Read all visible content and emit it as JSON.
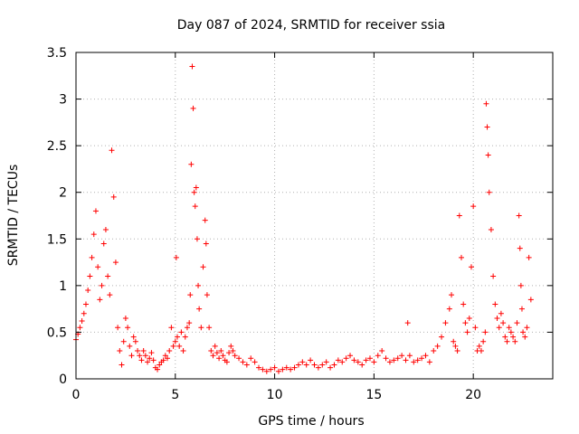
{
  "chart_data": {
    "type": "scatter",
    "title": "Day 087 of 2024, SRMTID for receiver ssia",
    "xlabel": "GPS time / hours",
    "ylabel": "SRMTID / TECUs",
    "xlim": [
      0,
      24
    ],
    "ylim": [
      0,
      3.5
    ],
    "xticks": [
      0,
      5,
      10,
      15,
      20
    ],
    "xtick_labels": [
      "0",
      "5",
      "10",
      "15",
      "20"
    ],
    "yticks": [
      0,
      0.5,
      1,
      1.5,
      2,
      2.5,
      3,
      3.5
    ],
    "ytick_labels": [
      "0",
      "0.5",
      "1",
      "1.5",
      "2",
      "2.5",
      "3",
      "3.5"
    ],
    "grid": true,
    "marker": "+",
    "marker_color": "#ff0000",
    "series": [
      {
        "name": "SRMTID",
        "x": [
          0.0,
          0.1,
          0.2,
          0.3,
          0.4,
          0.5,
          0.6,
          0.7,
          0.8,
          0.9,
          1.0,
          1.1,
          1.2,
          1.3,
          1.4,
          1.5,
          1.6,
          1.7,
          1.8,
          1.9,
          2.0,
          2.1,
          2.2,
          2.3,
          2.4,
          2.5,
          2.6,
          2.7,
          2.8,
          2.9,
          3.0,
          3.1,
          3.2,
          3.3,
          3.4,
          3.5,
          3.6,
          3.7,
          3.8,
          3.9,
          4.0,
          4.1,
          4.2,
          4.3,
          4.4,
          4.5,
          4.6,
          4.7,
          4.8,
          4.9,
          5.0,
          5.05,
          5.1,
          5.2,
          5.3,
          5.4,
          5.5,
          5.6,
          5.7,
          5.75,
          5.8,
          5.85,
          5.9,
          5.95,
          6.0,
          6.05,
          6.1,
          6.15,
          6.2,
          6.3,
          6.4,
          6.5,
          6.55,
          6.6,
          6.7,
          6.8,
          6.9,
          7.0,
          7.1,
          7.2,
          7.3,
          7.4,
          7.5,
          7.6,
          7.7,
          7.8,
          7.9,
          8.0,
          8.2,
          8.4,
          8.6,
          8.8,
          9.0,
          9.2,
          9.4,
          9.6,
          9.8,
          10.0,
          10.2,
          10.4,
          10.6,
          10.8,
          11.0,
          11.2,
          11.4,
          11.6,
          11.8,
          12.0,
          12.2,
          12.4,
          12.6,
          12.8,
          13.0,
          13.2,
          13.4,
          13.6,
          13.8,
          14.0,
          14.2,
          14.4,
          14.6,
          14.8,
          15.0,
          15.2,
          15.4,
          15.6,
          15.8,
          16.0,
          16.2,
          16.4,
          16.6,
          16.7,
          16.8,
          17.0,
          17.2,
          17.4,
          17.6,
          17.8,
          18.0,
          18.2,
          18.4,
          18.6,
          18.8,
          18.9,
          19.0,
          19.1,
          19.2,
          19.3,
          19.4,
          19.5,
          19.6,
          19.7,
          19.8,
          19.9,
          20.0,
          20.1,
          20.2,
          20.3,
          20.4,
          20.5,
          20.6,
          20.65,
          20.7,
          20.75,
          20.8,
          20.9,
          21.0,
          21.1,
          21.2,
          21.3,
          21.4,
          21.5,
          21.6,
          21.7,
          21.8,
          21.9,
          22.0,
          22.1,
          22.2,
          22.3,
          22.35,
          22.4,
          22.45,
          22.5,
          22.6,
          22.7,
          22.8,
          22.9
        ],
        "y": [
          0.42,
          0.48,
          0.55,
          0.62,
          0.7,
          0.8,
          0.95,
          1.1,
          1.3,
          1.55,
          1.8,
          1.2,
          0.85,
          1.0,
          1.45,
          1.6,
          1.1,
          0.9,
          2.45,
          1.95,
          1.25,
          0.55,
          0.3,
          0.15,
          0.4,
          0.65,
          0.55,
          0.35,
          0.25,
          0.45,
          0.4,
          0.3,
          0.25,
          0.2,
          0.3,
          0.25,
          0.18,
          0.22,
          0.28,
          0.2,
          0.12,
          0.1,
          0.15,
          0.18,
          0.2,
          0.25,
          0.22,
          0.3,
          0.55,
          0.35,
          0.4,
          1.3,
          0.45,
          0.35,
          0.5,
          0.3,
          0.45,
          0.55,
          0.6,
          0.9,
          2.3,
          3.35,
          2.9,
          2.0,
          1.85,
          2.05,
          1.5,
          1.0,
          0.75,
          0.55,
          1.2,
          1.7,
          1.45,
          0.9,
          0.55,
          0.3,
          0.25,
          0.35,
          0.28,
          0.22,
          0.3,
          0.25,
          0.2,
          0.18,
          0.28,
          0.35,
          0.3,
          0.25,
          0.22,
          0.18,
          0.15,
          0.22,
          0.18,
          0.12,
          0.1,
          0.08,
          0.1,
          0.12,
          0.08,
          0.1,
          0.12,
          0.1,
          0.12,
          0.15,
          0.18,
          0.15,
          0.2,
          0.15,
          0.12,
          0.15,
          0.18,
          0.12,
          0.15,
          0.2,
          0.18,
          0.22,
          0.25,
          0.2,
          0.18,
          0.15,
          0.2,
          0.22,
          0.18,
          0.25,
          0.3,
          0.22,
          0.18,
          0.2,
          0.22,
          0.25,
          0.2,
          0.6,
          0.25,
          0.18,
          0.2,
          0.22,
          0.25,
          0.18,
          0.3,
          0.35,
          0.45,
          0.6,
          0.75,
          0.9,
          0.4,
          0.35,
          0.3,
          1.75,
          1.3,
          0.8,
          0.6,
          0.5,
          0.65,
          1.2,
          1.85,
          0.55,
          0.3,
          0.35,
          0.3,
          0.4,
          0.5,
          2.95,
          2.7,
          2.4,
          2.0,
          1.6,
          1.1,
          0.8,
          0.65,
          0.55,
          0.7,
          0.6,
          0.45,
          0.4,
          0.55,
          0.5,
          0.45,
          0.4,
          0.6,
          1.75,
          1.4,
          1.0,
          0.75,
          0.5,
          0.45,
          0.55,
          1.3,
          0.85
        ]
      }
    ]
  }
}
